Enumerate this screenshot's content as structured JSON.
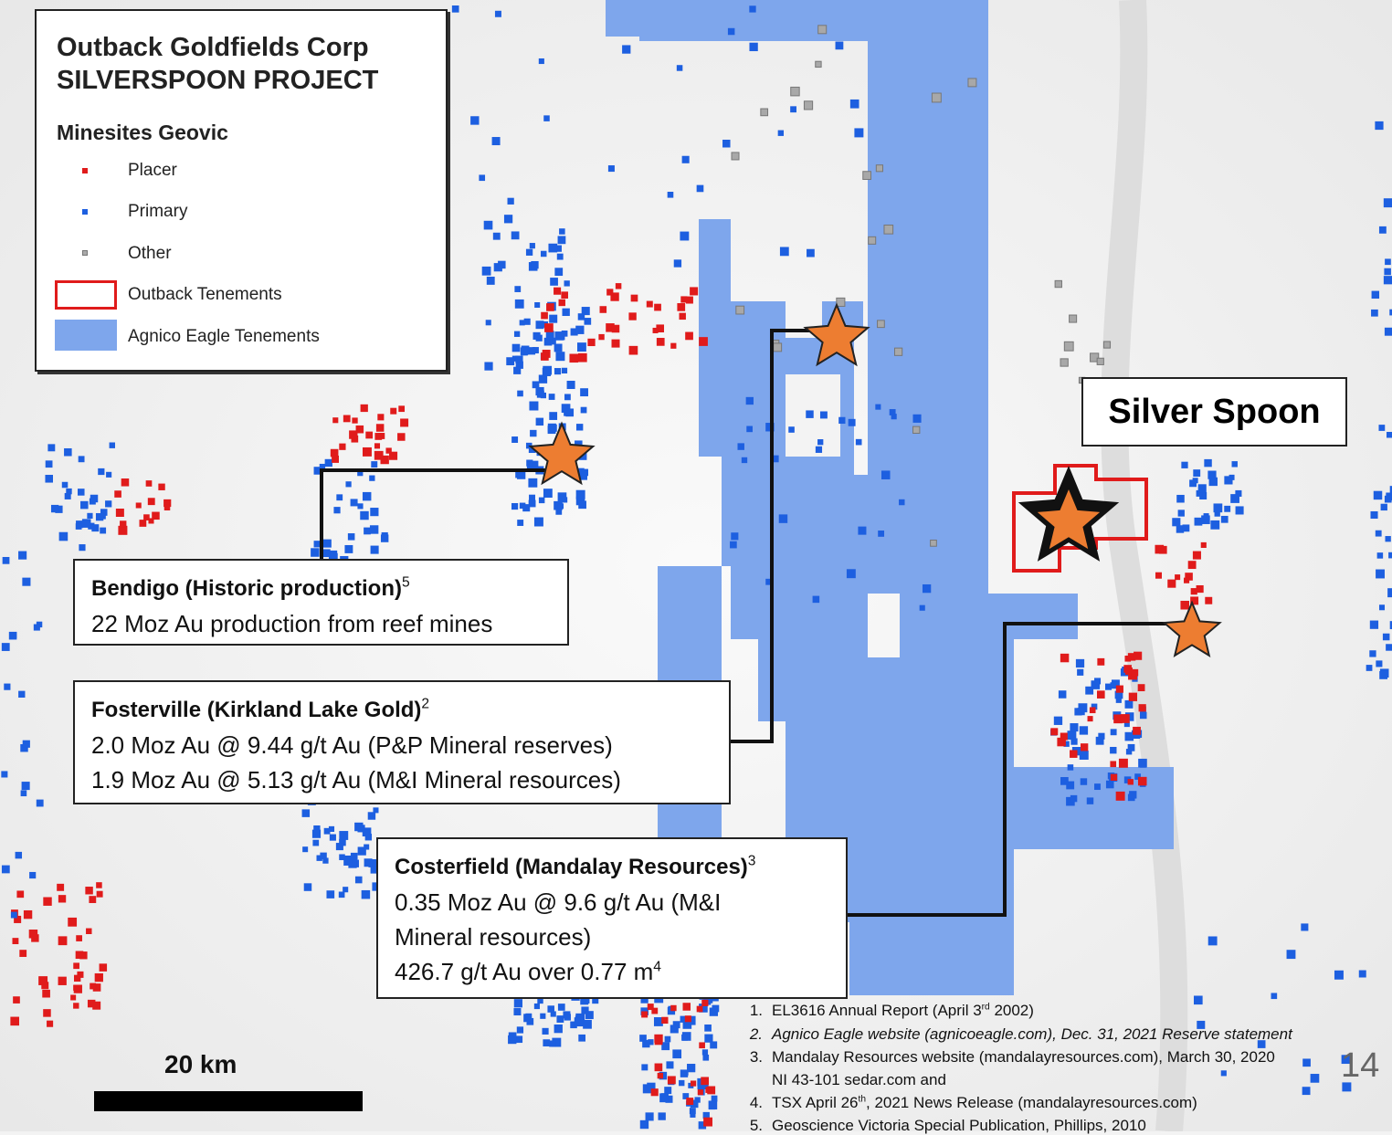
{
  "legend": {
    "title": [
      "Outback Goldfields Corp",
      "SILVERSPOON PROJECT"
    ],
    "subtitle": "Minesites Geovic",
    "items": [
      "Placer",
      "Primary",
      "Other",
      "Outback Tenements",
      "Agnico Eagle Tenements"
    ]
  },
  "project_label": "Silver Spoon",
  "callouts": [
    {
      "heading": "Bendigo (Historic production)",
      "sup": "5",
      "lines": [
        {
          "text": "22 Moz Au production from reef mines"
        }
      ]
    },
    {
      "heading": "Fosterville (Kirkland Lake Gold)",
      "sup": "2",
      "lines": [
        {
          "text": "2.0 Moz Au @ 9.44 g/t Au (P&P Mineral reserves)"
        },
        {
          "text": "1.9 Moz Au @ 5.13 g/t Au (M&I Mineral resources)"
        }
      ]
    },
    {
      "heading": "Costerfield (Mandalay Resources)",
      "sup": "3",
      "lines": [
        {
          "text": "0.35 Moz Au @ 9.6 g/t Au (M&I"
        },
        {
          "text": "Mineral resources)"
        },
        {
          "text": "426.7 g/t Au over 0.77 m",
          "sup": "4"
        }
      ]
    }
  ],
  "scale_bar": "20 km",
  "page_number": "14",
  "footnotes": [
    {
      "number": "1.",
      "text": "EL3616 Annual Report (April 3",
      "sup": "rd",
      "after": " 2002)"
    },
    {
      "number": "2.",
      "text": "Agnico Eagle website (agnicoeagle.com), Dec. 31, 2021 Reserve statement"
    },
    {
      "number": "3.",
      "text": "Mandalay Resources website (mandalayresources.com), March 30, 2020"
    },
    {
      "text": "NI 43-101 sedar.com and"
    },
    {
      "number": "4.",
      "text": "TSX April 26",
      "sup": "th",
      "after": ", 2021 News Release (mandalayresources.com)"
    },
    {
      "number": "5.",
      "text": "Geoscience Victoria Special Publication, Phillips, 2010"
    }
  ]
}
